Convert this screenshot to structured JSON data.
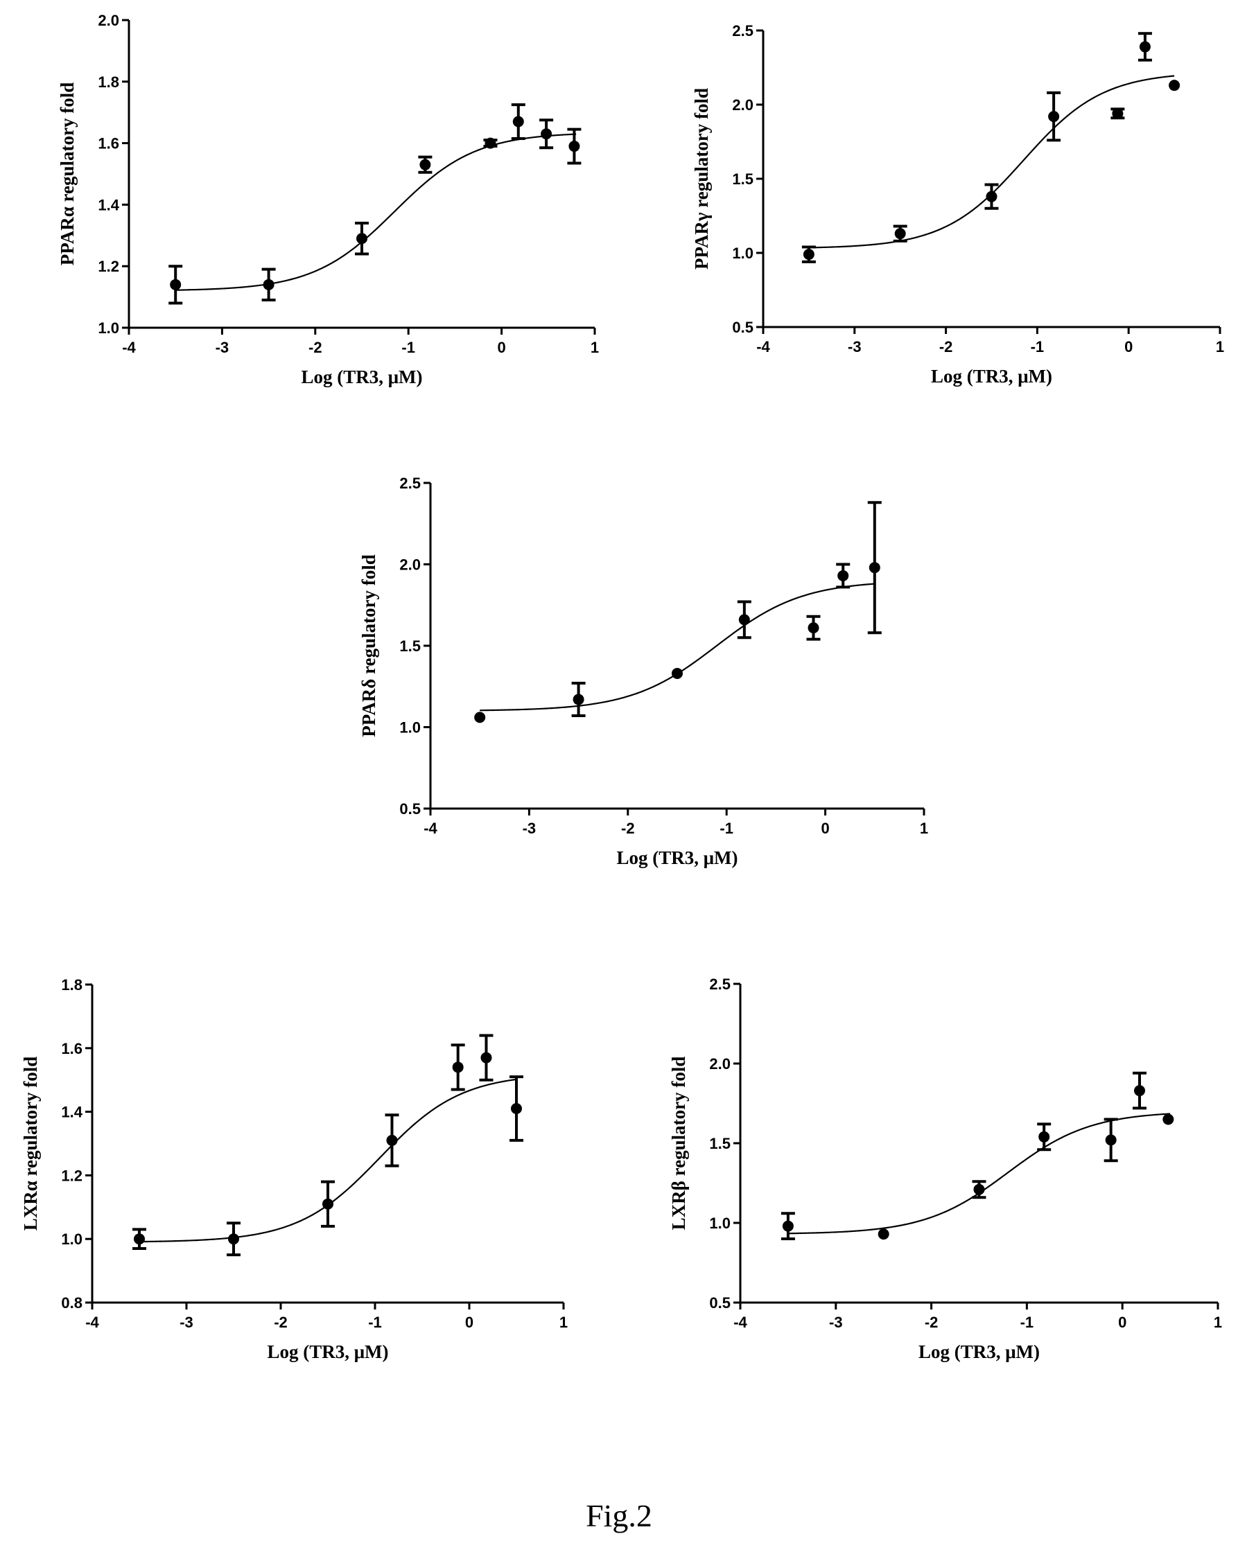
{
  "figure_label": "Fig.2",
  "chart_data": [
    {
      "type": "scatter",
      "xlabel": "Log (TR3, μM)",
      "ylabel": "PPARα regulatory fold",
      "xlim": [
        -4,
        1
      ],
      "ylim": [
        1.0,
        2.0
      ],
      "xticks": [
        -4,
        -3,
        -2,
        -1,
        0,
        1
      ],
      "yticks": [
        1.0,
        1.2,
        1.4,
        1.6,
        1.8,
        2.0
      ],
      "ytick_labels": [
        "1.0",
        "1.2",
        "1.4",
        "1.6",
        "1.8",
        "2.0"
      ],
      "points": [
        {
          "x": -3.5,
          "y": 1.14,
          "err": 0.06
        },
        {
          "x": -2.5,
          "y": 1.14,
          "err": 0.05
        },
        {
          "x": -1.5,
          "y": 1.29,
          "err": 0.05
        },
        {
          "x": -0.82,
          "y": 1.53,
          "err": 0.025
        },
        {
          "x": -0.12,
          "y": 1.6,
          "err": 0.01
        },
        {
          "x": 0.18,
          "y": 1.67,
          "err": 0.055
        },
        {
          "x": 0.48,
          "y": 1.63,
          "err": 0.045
        },
        {
          "x": 0.78,
          "y": 1.59,
          "err": 0.055
        }
      ],
      "fit": {
        "bottom": 1.12,
        "top": 1.635,
        "logec50": -1.15,
        "hill": 1.0,
        "x_range": [
          -3.5,
          0.8
        ]
      }
    },
    {
      "type": "scatter",
      "xlabel": "Log (TR3, μM)",
      "ylabel": "PPARγ regulatory fold",
      "xlim": [
        -4,
        1
      ],
      "ylim": [
        0.5,
        2.5
      ],
      "xticks": [
        -4,
        -3,
        -2,
        -1,
        0,
        1
      ],
      "yticks": [
        0.5,
        1.0,
        1.5,
        2.0,
        2.5
      ],
      "ytick_labels": [
        "0.5",
        "1.0",
        "1.5",
        "2.0",
        "2.5"
      ],
      "points": [
        {
          "x": -3.5,
          "y": 0.99,
          "err": 0.05
        },
        {
          "x": -2.5,
          "y": 1.13,
          "err": 0.05
        },
        {
          "x": -1.5,
          "y": 1.38,
          "err": 0.08
        },
        {
          "x": -0.82,
          "y": 1.92,
          "err": 0.16
        },
        {
          "x": -0.12,
          "y": 1.94,
          "err": 0.03
        },
        {
          "x": 0.18,
          "y": 2.39,
          "err": 0.09
        },
        {
          "x": 0.5,
          "y": 2.13,
          "err": 0
        }
      ],
      "fit": {
        "bottom": 1.03,
        "top": 2.22,
        "logec50": -1.15,
        "hill": 1.0,
        "x_range": [
          -3.5,
          0.5
        ]
      }
    },
    {
      "type": "scatter",
      "xlabel": "Log (TR3, μM)",
      "ylabel": "PPARδ regulatory fold",
      "xlim": [
        -4,
        1
      ],
      "ylim": [
        0.5,
        2.5
      ],
      "xticks": [
        -4,
        -3,
        -2,
        -1,
        0,
        1
      ],
      "yticks": [
        0.5,
        1.0,
        1.5,
        2.0,
        2.5
      ],
      "ytick_labels": [
        "0.5",
        "1.0",
        "1.5",
        "2.0",
        "2.5"
      ],
      "points": [
        {
          "x": -3.5,
          "y": 1.06,
          "err": 0
        },
        {
          "x": -2.5,
          "y": 1.17,
          "err": 0.1
        },
        {
          "x": -1.5,
          "y": 1.33,
          "err": 0
        },
        {
          "x": -0.82,
          "y": 1.66,
          "err": 0.11
        },
        {
          "x": -0.12,
          "y": 1.61,
          "err": 0.07
        },
        {
          "x": 0.18,
          "y": 1.93,
          "err": 0.07
        },
        {
          "x": 0.5,
          "y": 1.98,
          "err": 0.4
        }
      ],
      "fit": {
        "bottom": 1.1,
        "top": 1.9,
        "logec50": -1.1,
        "hill": 1.0,
        "x_range": [
          -3.5,
          0.5
        ]
      }
    },
    {
      "type": "scatter",
      "xlabel": "Log (TR3, μM)",
      "ylabel": "LXRα regulatory fold",
      "xlim": [
        -4,
        1
      ],
      "ylim": [
        0.8,
        1.8
      ],
      "xticks": [
        -4,
        -3,
        -2,
        -1,
        0,
        1
      ],
      "yticks": [
        0.8,
        1.0,
        1.2,
        1.4,
        1.6,
        1.8
      ],
      "ytick_labels": [
        "0.8",
        "1.0",
        "1.2",
        "1.4",
        "1.6",
        "1.8"
      ],
      "points": [
        {
          "x": -3.5,
          "y": 1.0,
          "err": 0.03
        },
        {
          "x": -2.5,
          "y": 1.0,
          "err": 0.05
        },
        {
          "x": -1.5,
          "y": 1.11,
          "err": 0.07
        },
        {
          "x": -0.82,
          "y": 1.31,
          "err": 0.08
        },
        {
          "x": -0.12,
          "y": 1.54,
          "err": 0.07
        },
        {
          "x": 0.18,
          "y": 1.57,
          "err": 0.07
        },
        {
          "x": 0.5,
          "y": 1.41,
          "err": 0.1
        }
      ],
      "fit": {
        "bottom": 0.99,
        "top": 1.52,
        "logec50": -0.95,
        "hill": 1.0,
        "x_range": [
          -3.5,
          0.5
        ]
      }
    },
    {
      "type": "scatter",
      "xlabel": "Log (TR3, μM)",
      "ylabel": "LXRβ regulatory fold",
      "xlim": [
        -4,
        1
      ],
      "ylim": [
        0.5,
        2.5
      ],
      "xticks": [
        -4,
        -3,
        -2,
        -1,
        0,
        1
      ],
      "yticks": [
        0.5,
        1.0,
        1.5,
        2.0,
        2.5
      ],
      "ytick_labels": [
        "0.5",
        "1.0",
        "1.5",
        "2.0",
        "2.5"
      ],
      "points": [
        {
          "x": -3.5,
          "y": 0.98,
          "err": 0.08
        },
        {
          "x": -2.5,
          "y": 0.93,
          "err": 0
        },
        {
          "x": -1.5,
          "y": 1.21,
          "err": 0.05
        },
        {
          "x": -0.82,
          "y": 1.54,
          "err": 0.08
        },
        {
          "x": -0.12,
          "y": 1.52,
          "err": 0.13
        },
        {
          "x": 0.18,
          "y": 1.83,
          "err": 0.11
        },
        {
          "x": 0.48,
          "y": 1.65,
          "err": 0
        }
      ],
      "fit": {
        "bottom": 0.93,
        "top": 1.7,
        "logec50": -1.2,
        "hill": 1.0,
        "x_range": [
          -3.5,
          0.5
        ]
      }
    }
  ]
}
